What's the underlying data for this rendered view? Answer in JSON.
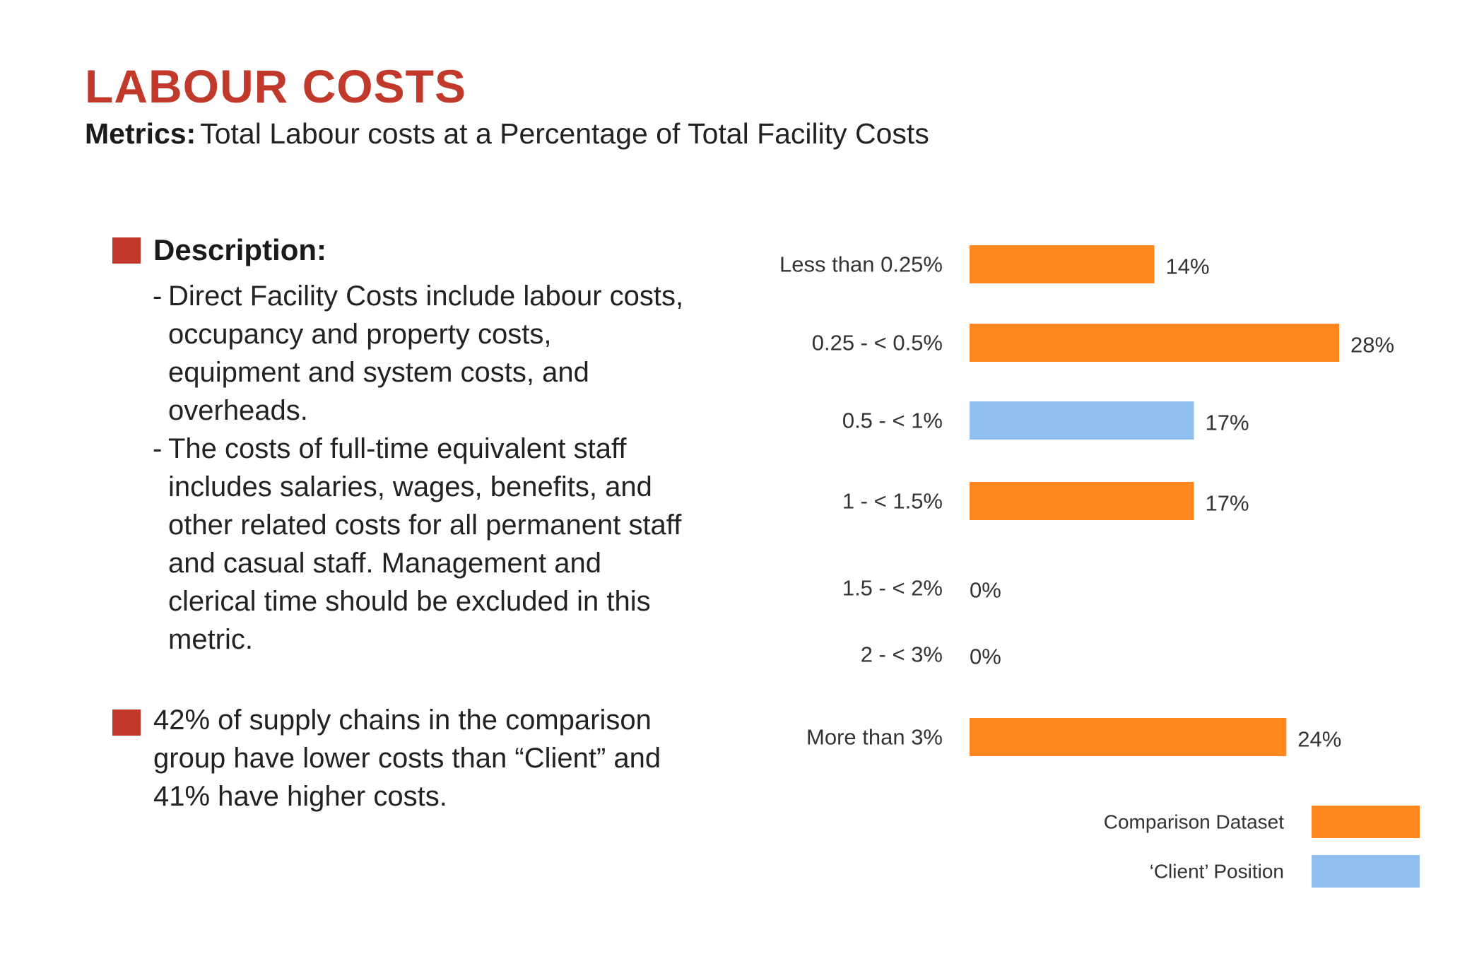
{
  "header": {
    "title": "LABOUR COSTS",
    "metrics_label": "Metrics:",
    "metrics_text": "Total Labour costs at a Percentage of Total Facility Costs"
  },
  "description": {
    "heading": "Description:",
    "items": [
      "Direct Facility Costs include labour costs, occupancy and property costs, equipment and system costs, and overheads.",
      "The costs of full-time equivalent staff includes salaries, wages, benefits, and other related costs for all permanent staff and casual staff. Management and clerical time should be excluded in this metric."
    ],
    "summary": "42% of supply chains in the comparison group have lower costs than “Client” and 41% have higher costs."
  },
  "colors": {
    "accent": "#c0392b",
    "comparison": "#ff871e",
    "client": "#90c0f0"
  },
  "chart_data": {
    "type": "bar",
    "orientation": "horizontal",
    "categories": [
      "Less than 0.25%",
      "0.25 - < 0.5%",
      "0.5 - < 1%",
      "1 - < 1.5%",
      "1.5 - < 2%",
      "2 - < 3%",
      "More than 3%"
    ],
    "values": [
      14,
      28,
      17,
      17,
      0,
      0,
      24
    ],
    "value_labels": [
      "14%",
      "28%",
      "17%",
      "17%",
      "0%",
      "0%",
      "24%"
    ],
    "highlight": [
      false,
      false,
      true,
      false,
      false,
      false,
      false
    ],
    "xlim": [
      0,
      28
    ],
    "grid": false,
    "legend": {
      "position": "bottom-right",
      "entries": [
        {
          "label": "Comparison Dataset",
          "color": "#ff871e"
        },
        {
          "label": "‘Client’ Position",
          "color": "#90c0f0"
        }
      ]
    }
  }
}
